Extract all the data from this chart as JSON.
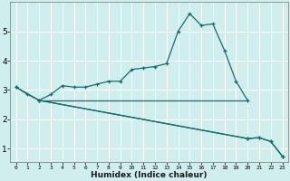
{
  "xlabel": "Humidex (Indice chaleur)",
  "background_color": "#d0eeed",
  "grid_color": "#ffffff",
  "line_color": "#1a6b6b",
  "x_ticks": [
    0,
    1,
    2,
    3,
    4,
    5,
    6,
    7,
    8,
    9,
    10,
    11,
    12,
    13,
    14,
    15,
    16,
    17,
    18,
    19,
    20,
    21,
    22,
    23
  ],
  "y_ticks": [
    1,
    2,
    3,
    4,
    5
  ],
  "ylim": [
    0.55,
    6.0
  ],
  "xlim": [
    -0.5,
    23.5
  ],
  "series": [
    {
      "x": [
        0,
        1,
        2,
        3,
        4,
        5,
        6,
        7,
        8,
        9,
        10,
        11,
        12,
        13,
        14,
        15,
        16,
        17,
        18,
        19,
        20
      ],
      "y": [
        3.1,
        2.85,
        2.65,
        2.85,
        3.15,
        3.1,
        3.1,
        3.2,
        3.3,
        3.3,
        3.7,
        3.75,
        3.8,
        3.9,
        5.0,
        5.6,
        5.2,
        5.25,
        4.35,
        3.3,
        2.65
      ],
      "marker": true,
      "lw": 0.9
    },
    {
      "x": [
        2,
        20
      ],
      "y": [
        2.65,
        2.65
      ],
      "marker": false,
      "lw": 0.9
    },
    {
      "x": [
        0,
        2,
        20,
        21,
        22,
        23
      ],
      "y": [
        3.1,
        2.65,
        1.35,
        1.38,
        1.25,
        0.75
      ],
      "marker": true,
      "lw": 0.9
    },
    {
      "x": [
        2,
        20,
        21,
        22,
        23
      ],
      "y": [
        2.65,
        1.35,
        1.38,
        1.25,
        0.75
      ],
      "marker": true,
      "lw": 0.9
    }
  ]
}
